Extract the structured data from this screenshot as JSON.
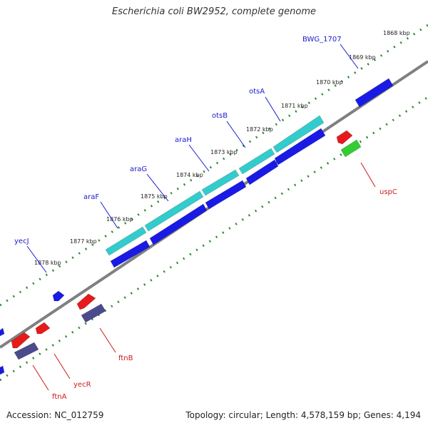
{
  "title": "Escherichia coli BW2952, complete genome",
  "footer": {
    "accession": "Accession: NC_012759",
    "stats": "Topology: circular; Length: 4,578,159 bp; Genes: 4,194"
  },
  "colors": {
    "backbone": "#808080",
    "tick_track": "#2e8b2e",
    "cds_teal": "#33cccc",
    "cds_blue": "#1a1ae6",
    "cds_red": "#e61a1a",
    "cds_slate": "#4a4a8c",
    "cds_green": "#33cc33",
    "label_blue": "#1a1acc",
    "label_red": "#cc1a1a"
  },
  "ruler": {
    "ticks": [
      {
        "label": "1868 kbp"
      },
      {
        "label": "1869 kbp"
      },
      {
        "label": "1870 kbp"
      },
      {
        "label": "1871 kbp"
      },
      {
        "label": "1872 kbp"
      },
      {
        "label": "1873 kbp"
      },
      {
        "label": "1874 kbp"
      },
      {
        "label": "1875 kbp"
      },
      {
        "label": "1876 kbp"
      },
      {
        "label": "1877 kbp"
      },
      {
        "label": "1878 kbp"
      }
    ]
  },
  "gene_labels": [
    {
      "name": "BWG_1707",
      "strand": "forward"
    },
    {
      "name": "otsA",
      "strand": "forward"
    },
    {
      "name": "otsB",
      "strand": "forward"
    },
    {
      "name": "araH",
      "strand": "forward"
    },
    {
      "name": "araG",
      "strand": "forward"
    },
    {
      "name": "araF",
      "strand": "forward"
    },
    {
      "name": "yecJ",
      "strand": "forward"
    },
    {
      "name": "uspC",
      "strand": "reverse"
    },
    {
      "name": "ftnB",
      "strand": "reverse"
    },
    {
      "name": "yecR",
      "strand": "reverse"
    },
    {
      "name": "ftnA",
      "strand": "reverse"
    }
  ]
}
